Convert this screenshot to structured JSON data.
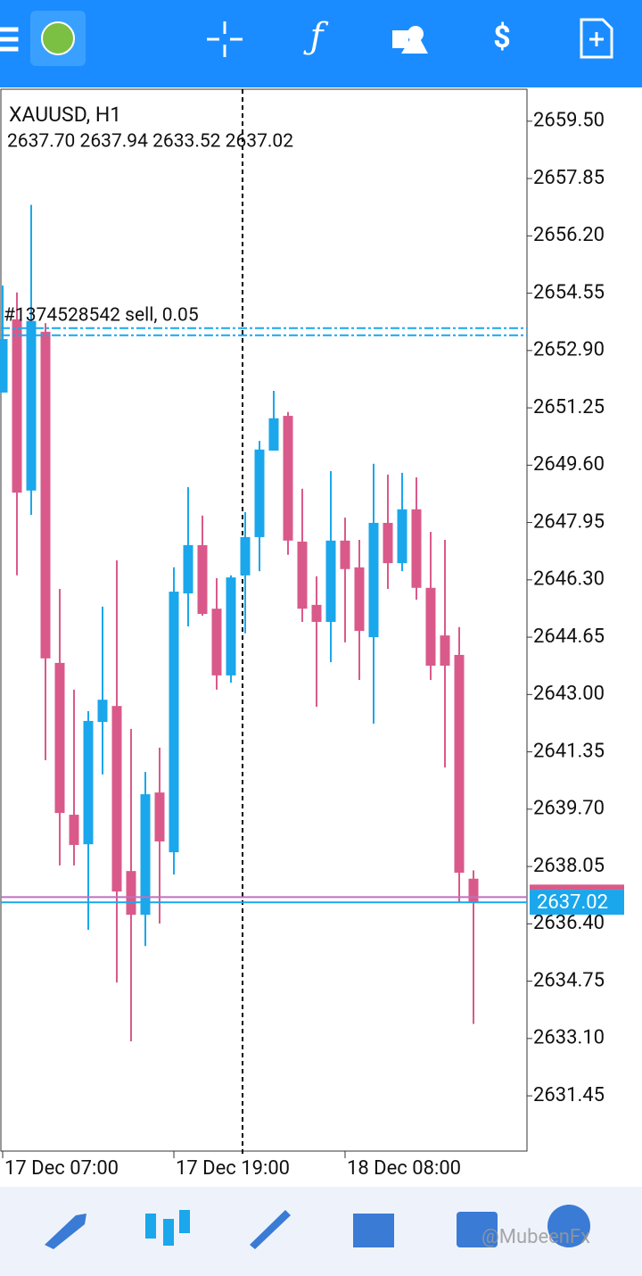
{
  "watermark": "@MubeenFx",
  "chart_data": {
    "type": "candlestick",
    "title": "XAUUSD, H1",
    "subtitle": "2637.70 2637.94 2633.52 2637.02",
    "categories": [
      "17 Dec 07:00",
      null,
      null,
      null,
      null,
      null,
      null,
      null,
      null,
      null,
      null,
      null,
      "17 Dec 19:00",
      null,
      null,
      null,
      null,
      null,
      null,
      null,
      null,
      null,
      null,
      null,
      "18 Dec 08:00",
      null,
      null,
      null,
      null,
      null,
      null,
      null,
      null,
      null
    ],
    "open": [
      2651.69,
      2653.8,
      2648.87,
      2653.44,
      2643.91,
      2639.54,
      2638.69,
      2642.21,
      2642.67,
      2637.92,
      2636.66,
      2640.18,
      2638.46,
      2645.91,
      2647.3,
      2645.47,
      2643.55,
      2646.43,
      2647.53,
      2650.02,
      2651.02,
      2647.4,
      2645.58,
      2645.09,
      2647.43,
      2646.66,
      2644.65,
      2647.94,
      2646.78,
      2648.33,
      2646.07,
      2644.7,
      2644.14,
      2637.7
    ],
    "high": [
      2654.77,
      2654.57,
      2657.09,
      2653.69,
      2646.04,
      2643.14,
      2642.52,
      2645.53,
      2646.86,
      2642.01,
      2640.77,
      2641.47,
      2646.66,
      2648.97,
      2648.15,
      2646.35,
      2646.43,
      2648.25,
      2650.3,
      2651.74,
      2651.13,
      2648.92,
      2646.4,
      2649.43,
      2648.09,
      2647.45,
      2649.64,
      2649.33,
      2649.38,
      2649.25,
      2647.68,
      2647.45,
      2644.94,
      2637.94
    ],
    "low": [
      2651.69,
      2646.43,
      2648.17,
      2641.11,
      2638.08,
      2638.08,
      2636.23,
      2640.7,
      2634.71,
      2633.02,
      2635.76,
      2636.41,
      2637.82,
      2644.96,
      2645.27,
      2643.14,
      2643.34,
      2644.76,
      2646.55,
      2650.02,
      2647.02,
      2645.09,
      2642.65,
      2643.93,
      2644.5,
      2643.42,
      2642.16,
      2646.04,
      2646.55,
      2645.73,
      2643.42,
      2640.9,
      2637.0,
      2633.52
    ],
    "close": [
      2653.23,
      2648.81,
      2653.75,
      2644.04,
      2639.59,
      2638.67,
      2642.24,
      2642.85,
      2637.33,
      2636.66,
      2640.13,
      2638.77,
      2645.96,
      2647.3,
      2645.32,
      2643.55,
      2646.37,
      2647.53,
      2650.05,
      2650.95,
      2647.43,
      2645.47,
      2645.09,
      2647.43,
      2646.61,
      2644.83,
      2647.94,
      2646.78,
      2648.33,
      2646.07,
      2643.83,
      2643.83,
      2637.87,
      2637.02
    ],
    "up_color": "#1aa7ec",
    "down_color": "#d95a8a",
    "ylim": [
      2629.86,
      2660.42
    ],
    "yticks": [
      {
        "value": 2659.5,
        "label": "2659.50"
      },
      2657.85,
      {
        "value": 2656.2,
        "label": "2656.20"
      },
      2654.55,
      {
        "value": 2652.9,
        "label": "2652.90"
      },
      2651.25,
      {
        "value": 2649.6,
        "label": "2649.60"
      },
      2647.95,
      {
        "value": 2646.3,
        "label": "2646.30"
      },
      2644.65,
      {
        "value": 2643.0,
        "label": "2643.00"
      },
      2641.35,
      {
        "value": 2639.7,
        "label": "2639.70"
      },
      2638.05,
      {
        "value": 2636.4,
        "label": "2636.40"
      },
      2634.75,
      {
        "value": 2633.1,
        "label": "2633.10"
      },
      2631.45
    ],
    "order_line": {
      "label": "#1374528542 sell, 0.05",
      "value": 2653.44,
      "color": "#1aa7ec"
    },
    "price_line": {
      "value": 2637.02,
      "color": "#1aa7ec"
    },
    "ask_line": {
      "value": 2637.17,
      "color": "#c070c0"
    }
  }
}
